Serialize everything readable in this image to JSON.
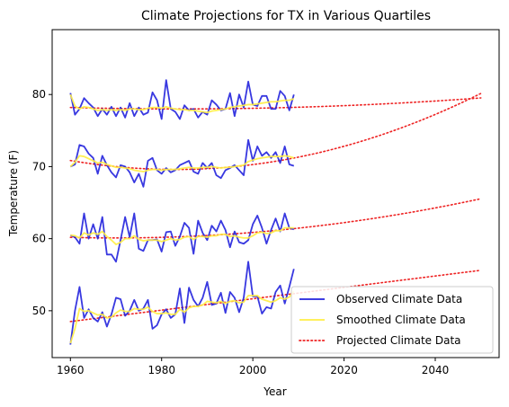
{
  "chart_data": {
    "type": "line",
    "title": "Climate Projections for TX in Various Quartiles",
    "xlabel": "Year",
    "ylabel": "Temperature (F)",
    "xlim": [
      1956,
      2054
    ],
    "ylim": [
      43.5,
      89
    ],
    "xticks": [
      1960,
      1980,
      2000,
      2020,
      2040
    ],
    "yticks": [
      50,
      60,
      70,
      80
    ],
    "grid": false,
    "legend": {
      "placement": "lower-right",
      "entries": [
        {
          "label": "Observed Climate Data",
          "color": "#2222dd",
          "style": "solid"
        },
        {
          "label": "Smoothed Climate Data",
          "color": "#ffee44",
          "style": "solid"
        },
        {
          "label": "Projected Climate Data",
          "color": "#ee2222",
          "style": "dotted"
        }
      ]
    },
    "quartiles": [
      {
        "observed_start_year": 1960,
        "observed": [
          80.2,
          77.2,
          78.0,
          79.5,
          78.8,
          78.2,
          77.0,
          78.0,
          77.2,
          78.3,
          77.0,
          78.2,
          76.8,
          78.8,
          77.0,
          78.2,
          77.2,
          77.5,
          80.3,
          79.2,
          76.6,
          82.0,
          78.0,
          77.6,
          76.6,
          78.5,
          77.8,
          78.0,
          76.8,
          77.6,
          77.2,
          79.2,
          78.6,
          77.8,
          78.0,
          80.2,
          77.0,
          80.0,
          78.2,
          81.8,
          78.6,
          78.4,
          79.8,
          79.8,
          78.0,
          78.0,
          80.5,
          79.8,
          77.8,
          80.0
        ],
        "smoothed": [
          80.0,
          78.4,
          78.0,
          78.3,
          78.2,
          78.0,
          77.8,
          77.9,
          77.8,
          77.9,
          77.8,
          77.9,
          77.8,
          78.0,
          78.0,
          77.9,
          77.9,
          78.1,
          78.2,
          78.2,
          78.1,
          78.3,
          78.1,
          78.0,
          77.9,
          77.9,
          77.8,
          77.8,
          77.7,
          77.6,
          77.5,
          77.7,
          77.8,
          77.9,
          78.0,
          78.2,
          78.3,
          78.4,
          78.5,
          78.6,
          78.6,
          78.7,
          78.8,
          78.9,
          79.0,
          79.0,
          79.1,
          79.2,
          79.2,
          79.4
        ],
        "projected": {
          "start": 1960,
          "end": 2050,
          "a": 78.7,
          "b": 0.00035,
          "min_year": 1984,
          "min_value": 78.0
        }
      },
      {
        "observed_start_year": 1960,
        "observed": [
          70.0,
          70.3,
          73.0,
          72.8,
          71.8,
          71.2,
          69.0,
          71.5,
          70.2,
          69.2,
          68.5,
          70.2,
          70.0,
          69.2,
          67.8,
          69.0,
          67.2,
          70.8,
          71.2,
          69.5,
          69.0,
          69.8,
          69.2,
          69.5,
          70.2,
          70.5,
          70.8,
          69.3,
          69.0,
          70.5,
          69.8,
          70.5,
          68.8,
          68.4,
          69.5,
          69.8,
          70.2,
          69.5,
          68.8,
          73.7,
          70.8,
          72.8,
          71.5,
          72.0,
          71.2,
          72.0,
          70.5,
          72.8,
          70.3,
          70.1
        ],
        "smoothed": [
          70.0,
          70.6,
          71.5,
          71.4,
          71.1,
          70.8,
          70.5,
          70.6,
          70.3,
          70.1,
          69.9,
          69.9,
          69.8,
          69.7,
          69.5,
          69.4,
          69.3,
          69.5,
          69.6,
          69.6,
          69.5,
          69.6,
          69.6,
          69.6,
          69.7,
          69.8,
          69.9,
          69.8,
          69.8,
          69.9,
          69.9,
          70.0,
          69.9,
          69.8,
          69.9,
          69.9,
          70.0,
          70.1,
          70.2,
          70.7,
          70.9,
          71.1,
          71.2,
          71.3,
          71.4,
          71.4,
          71.4,
          71.5,
          71.4,
          71.2
        ],
        "projected": {
          "start": 1960,
          "end": 2050,
          "a": 70.5,
          "b": 0.00235,
          "min_year": 1983,
          "min_value": 69.6
        }
      },
      {
        "observed_start_year": 1960,
        "observed": [
          60.5,
          60.2,
          59.3,
          63.5,
          60.0,
          62.0,
          60.0,
          63.0,
          57.8,
          57.8,
          56.8,
          59.8,
          63.0,
          60.2,
          63.5,
          58.6,
          58.3,
          59.8,
          59.8,
          59.9,
          58.2,
          60.9,
          61.0,
          59.0,
          60.3,
          62.2,
          61.5,
          57.9,
          62.5,
          60.8,
          59.8,
          61.8,
          61.0,
          62.5,
          61.2,
          58.8,
          61.0,
          59.5,
          59.3,
          59.8,
          62.0,
          63.2,
          61.5,
          59.3,
          61.2,
          62.8,
          61.0,
          63.5,
          61.5,
          61.3
        ],
        "smoothed": [
          60.5,
          60.4,
          60.1,
          60.8,
          60.5,
          60.8,
          60.6,
          61.0,
          60.3,
          59.8,
          59.2,
          59.5,
          60.0,
          60.0,
          60.4,
          59.9,
          59.7,
          59.8,
          59.8,
          59.8,
          59.6,
          59.8,
          60.0,
          59.8,
          59.9,
          60.2,
          60.3,
          59.9,
          60.3,
          60.3,
          60.2,
          60.4,
          60.4,
          60.6,
          60.6,
          60.3,
          60.4,
          60.2,
          60.1,
          60.1,
          60.4,
          60.8,
          60.9,
          60.7,
          60.8,
          61.1,
          61.1,
          61.5,
          61.5,
          61.5
        ],
        "projected": {
          "start": 1960,
          "end": 2050,
          "a": 60.0,
          "b": 0.00085,
          "min_year": 1970,
          "min_value": 60.1
        }
      },
      {
        "observed_start_year": 1960,
        "observed": [
          45.3,
          50.0,
          53.3,
          49.0,
          50.2,
          49.0,
          48.5,
          49.8,
          47.8,
          49.5,
          51.8,
          51.6,
          49.3,
          50.0,
          51.5,
          50.0,
          50.3,
          51.5,
          47.5,
          48.0,
          49.5,
          50.2,
          49.0,
          49.5,
          53.1,
          48.3,
          53.2,
          51.5,
          50.6,
          51.8,
          54.0,
          50.8,
          51.0,
          52.5,
          49.7,
          52.6,
          51.8,
          49.8,
          51.8,
          56.8,
          52.0,
          52.0,
          49.6,
          50.5,
          50.3,
          52.6,
          53.5,
          51.0,
          53.3,
          55.8
        ],
        "smoothed": [
          45.5,
          47.5,
          50.3,
          49.9,
          50.0,
          49.7,
          49.4,
          49.5,
          49.0,
          49.1,
          49.7,
          50.1,
          49.9,
          49.9,
          50.3,
          50.2,
          50.2,
          50.5,
          49.9,
          49.6,
          49.6,
          49.7,
          49.5,
          49.5,
          50.2,
          49.8,
          50.4,
          50.6,
          50.6,
          50.8,
          51.3,
          51.2,
          51.1,
          51.3,
          51.0,
          51.3,
          51.4,
          51.1,
          51.2,
          52.1,
          52.1,
          52.1,
          51.6,
          51.4,
          51.2,
          51.4,
          51.8,
          51.6,
          51.9,
          52.7
        ],
        "projected": {
          "start": 1960,
          "end": 2050,
          "a": 48.5,
          "b": 0.0,
          "min_year": 1960,
          "min_value": 48.5,
          "slope": 0.079
        }
      }
    ],
    "colors": {
      "observed": "#2222dd",
      "smoothed": "#ffee44",
      "projected": "#ee2222",
      "axes": "#000000"
    }
  }
}
